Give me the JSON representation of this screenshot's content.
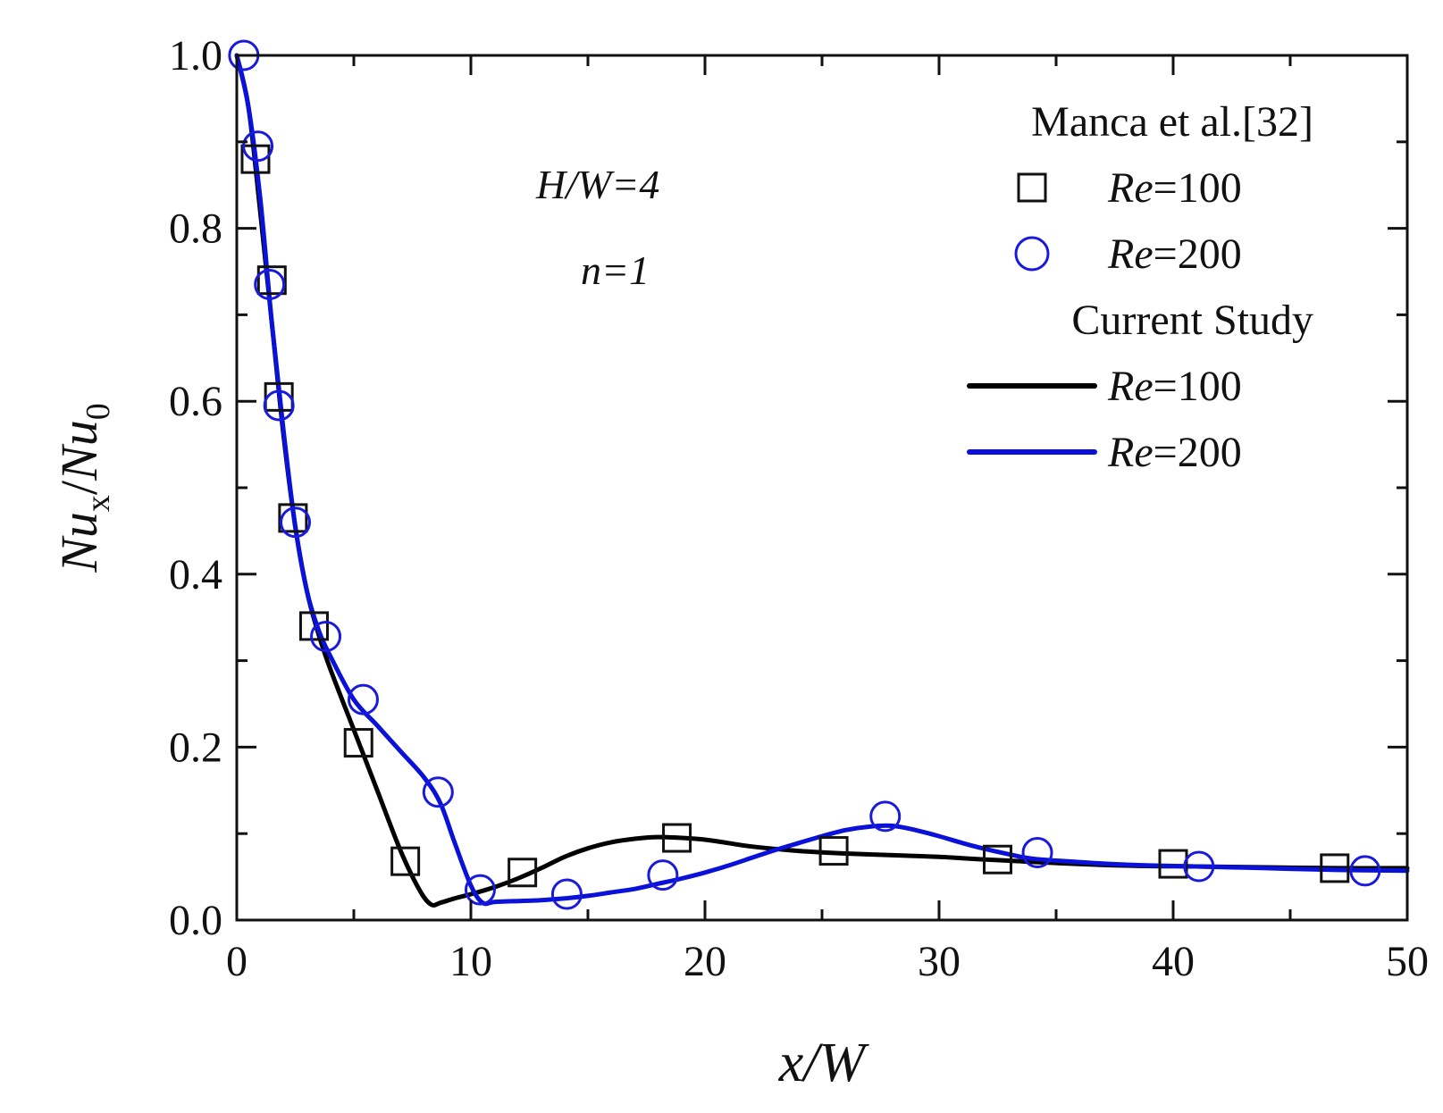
{
  "chart_data": {
    "type": "line",
    "title": "",
    "xlabel": "x/W",
    "ylabel": "Nu_x/Nu_0",
    "xlim": [
      0,
      50
    ],
    "ylim": [
      0,
      1.0
    ],
    "x_ticks": [
      0,
      10,
      20,
      30,
      40,
      50
    ],
    "x_tick_labels": [
      "0",
      "10",
      "20",
      "30",
      "40",
      "50"
    ],
    "y_ticks": [
      0.0,
      0.2,
      0.4,
      0.6,
      0.8,
      1.0
    ],
    "y_tick_labels": [
      "0.0",
      "0.2",
      "0.4",
      "0.6",
      "0.8",
      "1.0"
    ],
    "grid": false,
    "annotations": {
      "hw": "H/W=4",
      "n": "n=1"
    },
    "legend": {
      "placement": "top-right",
      "groups": [
        {
          "title": "Manca et al.[32]",
          "entries": [
            {
              "label": "Re=100",
              "marker": "square",
              "color": "#111111"
            },
            {
              "label": "Re=200",
              "marker": "circle",
              "color": "#1a1adb"
            }
          ]
        },
        {
          "title": "Current Study",
          "entries": [
            {
              "label": "Re=100",
              "marker": "line",
              "color": "#000000"
            },
            {
              "label": "Re=200",
              "marker": "line",
              "color": "#0a12d9"
            }
          ]
        }
      ]
    },
    "series": [
      {
        "name": "Manca et al.[32] Re=100",
        "style": "marker",
        "marker": "square",
        "color": "#111111",
        "x": [
          0.8,
          1.5,
          1.8,
          2.4,
          3.3,
          5.2,
          7.2,
          12.2,
          18.8,
          25.5,
          32.5,
          40.0,
          46.9
        ],
        "y": [
          0.88,
          0.74,
          0.605,
          0.465,
          0.34,
          0.205,
          0.068,
          0.055,
          0.095,
          0.08,
          0.07,
          0.065,
          0.06
        ]
      },
      {
        "name": "Manca et al.[32] Re=200",
        "style": "marker",
        "marker": "circle",
        "color": "#1a1adb",
        "x": [
          0.3,
          0.9,
          1.4,
          1.8,
          2.5,
          3.8,
          5.4,
          8.6,
          10.4,
          14.1,
          18.2,
          27.7,
          34.2,
          41.1,
          48.2
        ],
        "y": [
          1.0,
          0.895,
          0.735,
          0.595,
          0.46,
          0.328,
          0.255,
          0.148,
          0.035,
          0.03,
          0.052,
          0.12,
          0.078,
          0.062,
          0.057
        ]
      },
      {
        "name": "Current Study Re=100",
        "style": "line",
        "color": "#000000",
        "x": [
          0,
          0.5,
          1.0,
          1.5,
          2.0,
          2.5,
          3.0,
          3.5,
          4.0,
          5.0,
          6.0,
          7.0,
          7.8,
          8.3,
          8.7,
          9.3,
          10.0,
          11.0,
          12.0,
          13.0,
          14.0,
          15.0,
          16.0,
          17.0,
          18.0,
          19.0,
          20.0,
          21.0,
          22.0,
          24.0,
          26.0,
          28.0,
          30.0,
          32.0,
          35.0,
          38.0,
          41.0,
          44.0,
          47.0,
          50.0
        ],
        "y": [
          1.0,
          0.94,
          0.82,
          0.69,
          0.56,
          0.455,
          0.38,
          0.33,
          0.29,
          0.22,
          0.15,
          0.08,
          0.035,
          0.018,
          0.02,
          0.025,
          0.03,
          0.038,
          0.048,
          0.06,
          0.073,
          0.083,
          0.09,
          0.094,
          0.096,
          0.095,
          0.093,
          0.089,
          0.085,
          0.08,
          0.077,
          0.075,
          0.073,
          0.07,
          0.066,
          0.063,
          0.062,
          0.061,
          0.06,
          0.06
        ]
      },
      {
        "name": "Current Study Re=200",
        "style": "line",
        "color": "#0a12d9",
        "x": [
          0,
          0.5,
          1.0,
          1.5,
          2.0,
          2.5,
          3.0,
          3.5,
          4.0,
          5.0,
          6.0,
          7.0,
          8.0,
          8.7,
          9.3,
          10.0,
          10.5,
          11.0,
          12.0,
          13.0,
          14.0,
          15.0,
          16.0,
          17.0,
          18.0,
          19.0,
          20.0,
          21.0,
          22.0,
          23.0,
          24.0,
          25.0,
          26.0,
          27.0,
          28.0,
          29.0,
          30.0,
          31.0,
          32.0,
          33.0,
          34.0,
          36.0,
          38.0,
          41.0,
          44.0,
          47.0,
          50.0
        ],
        "y": [
          1.0,
          0.94,
          0.835,
          0.69,
          0.565,
          0.455,
          0.38,
          0.335,
          0.305,
          0.255,
          0.225,
          0.195,
          0.165,
          0.135,
          0.09,
          0.04,
          0.02,
          0.021,
          0.022,
          0.023,
          0.025,
          0.028,
          0.032,
          0.036,
          0.042,
          0.048,
          0.055,
          0.063,
          0.072,
          0.081,
          0.089,
          0.097,
          0.104,
          0.108,
          0.109,
          0.104,
          0.097,
          0.089,
          0.082,
          0.076,
          0.071,
          0.067,
          0.064,
          0.062,
          0.06,
          0.058,
          0.057
        ]
      }
    ]
  }
}
